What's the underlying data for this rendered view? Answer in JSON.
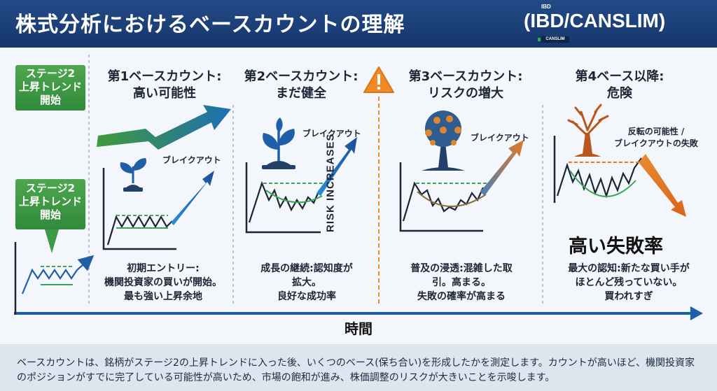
{
  "header": {
    "title": "株式分析におけるベースカウントの理解",
    "tag": "(IBD/CANSLIM)",
    "logo_top": "IBD",
    "logo_badge": "CANSLIM"
  },
  "stage_labels": [
    {
      "lines": [
        "ステージ2",
        "上昇トレンド",
        "開始"
      ]
    },
    {
      "lines": [
        "ステージ2",
        "上昇トレンド",
        "開始"
      ]
    }
  ],
  "risk_label": "RISK INCREASES",
  "columns": [
    {
      "title": [
        "第1ベースカウント:",
        "高い可能性"
      ],
      "breakout": "ブレイクアウト",
      "desc": [
        "初期エントリー:",
        "機関投資家の買いが開始。",
        "最も強い上昇余地"
      ]
    },
    {
      "title": [
        "第2ベースカウント:",
        "まだ健全"
      ],
      "breakout": "ブレイクアウト",
      "desc": [
        "成長の継続:認知度が",
        "拡大。",
        "良好な成功率"
      ]
    },
    {
      "title": [
        "第3ベースカウント:",
        "リスクの増大"
      ],
      "breakout": "ブレイクアウト",
      "desc": [
        "普及の浸透:混雑した取",
        "引。高まる。",
        "失敗の確率が高まる"
      ]
    },
    {
      "title": [
        "第4ベース以降:",
        "危険"
      ],
      "reversal": [
        "反転の可能性 /",
        "ブレイクアウトの失敗"
      ],
      "big": "高い失敗率",
      "desc": [
        "最大の認知:新たな買い手が",
        "ほとんど残っていない。",
        "買われすぎ"
      ]
    }
  ],
  "x_axis_label": "時間",
  "footer_note": "ベースカウントは、銘柄がステージ2の上昇トレンドに入った後、いくつのベース(保ち合い)を形成したかを測定します。カウントが高いほど、機関投資家のポジションがすでに完了している可能性が高いため、市場の飽和が進み、株価調整のリスクが大きいことを示唆します。",
  "colors": {
    "header_bg": "#1b3f7a",
    "stage_green": "#3d9a45",
    "arrow_blue": "#1f5fa8",
    "arrow_orange": "#e2781f",
    "warning_orange": "#f08a24",
    "dashed_green": "#3aa655"
  },
  "icons": [
    "sprout-icon",
    "young-plant-icon",
    "warning-triangle-icon",
    "tree-icon",
    "dead-tree-icon"
  ]
}
